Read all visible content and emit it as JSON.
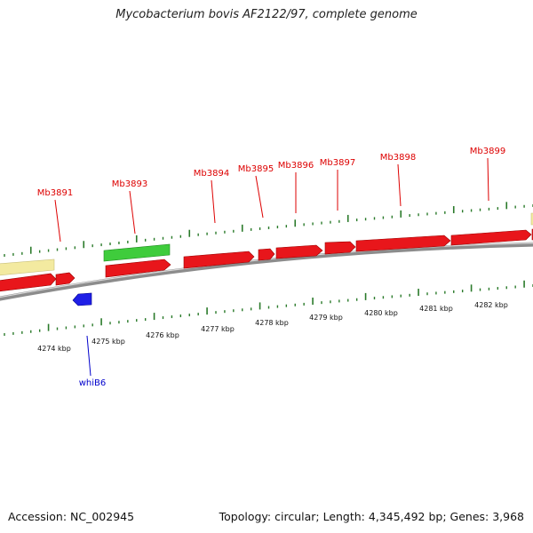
{
  "title": "Mycobacterium bovis AF2122/97, complete genome",
  "accession": "Accession: NC_002945",
  "summary": "Topology: circular; Length: 4,345,492 bp; Genes: 3,968",
  "colors": {
    "forward_gene": "#e8161b",
    "reverse_gene": "#1f1fe6",
    "rna_gene": "#3fcc3c",
    "other_feature": "#f3eaa0",
    "backbone": "#8c8c8c",
    "tick": "#2a7a2a",
    "gene_label_forward": "#dd0000",
    "gene_label_reverse": "#0000cc"
  },
  "gene_labels_top": [
    "Mb3891",
    "Mb3893",
    "Mb3894",
    "Mb3895",
    "Mb3896",
    "Mb3897",
    "Mb3898",
    "Mb3899"
  ],
  "gene_labels_bottom": [
    "whiB6"
  ],
  "kbp_labels": [
    "4274 kbp",
    "4275 kbp",
    "4276 kbp",
    "4277 kbp",
    "4278 kbp",
    "4279 kbp",
    "4280 kbp",
    "4281 kbp",
    "4282 kbp"
  ]
}
